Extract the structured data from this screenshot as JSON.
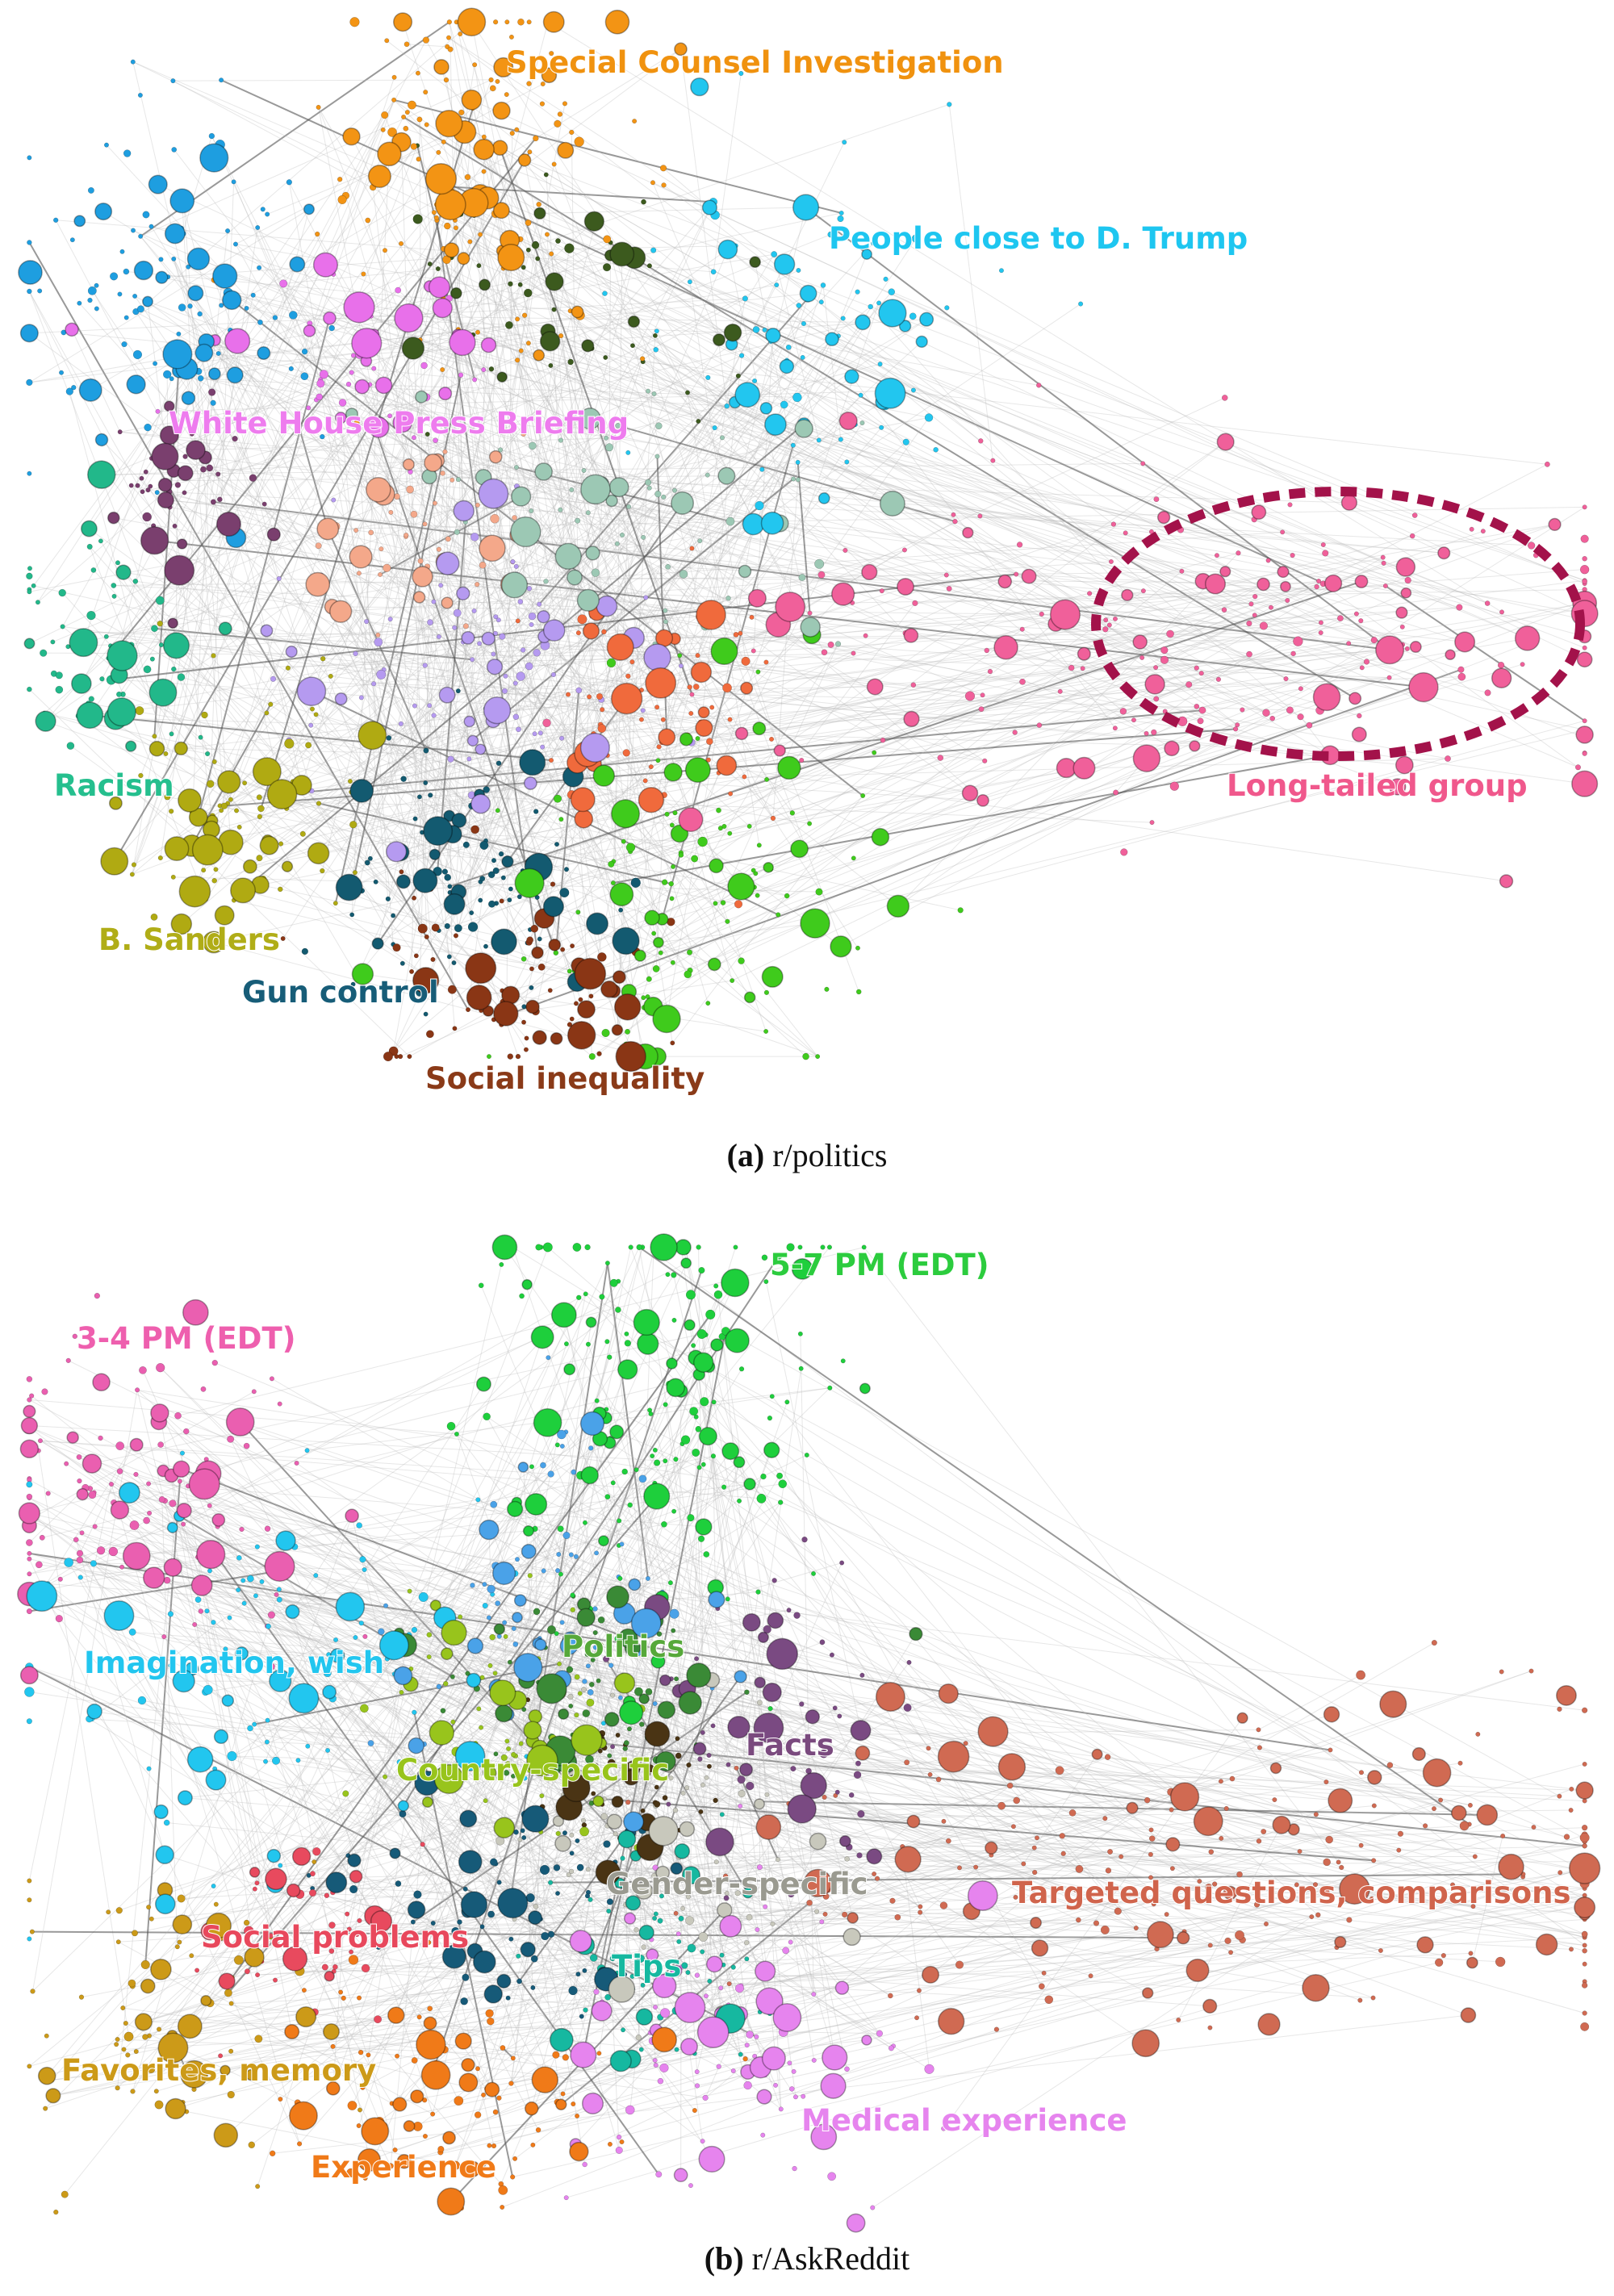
{
  "panels": [
    {
      "label": "(a)",
      "caption": "r/politics",
      "clusters": [
        "Special Counsel Investigation",
        "People close to D. Trump",
        "White House Press Briefing",
        "Racism",
        "Long-tailed group",
        "B. Sanders",
        "Gun control",
        "Social inequality"
      ]
    },
    {
      "label": "(b)",
      "caption": "r/AskReddit",
      "clusters": [
        "5-7 PM (EDT)",
        "3-4 PM (EDT)",
        "Imagination, wish",
        "Politics",
        "Country-specific",
        "Facts",
        "Gender-specific",
        "Targeted questions, comparisons",
        "Social problems",
        "Tips",
        "Favorites, memory",
        "Medical experience",
        "Experience"
      ]
    }
  ]
}
